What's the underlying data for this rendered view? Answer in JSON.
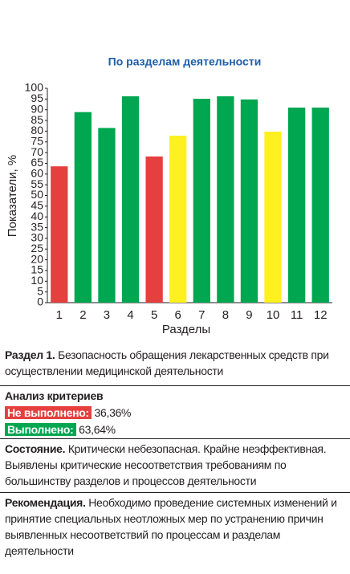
{
  "chart_data": {
    "type": "bar",
    "title": "По разделам деятельности",
    "y_label": "Показатели, %",
    "x_label": "Разделы",
    "categories": [
      "1",
      "2",
      "3",
      "4",
      "5",
      "6",
      "7",
      "8",
      "9",
      "10",
      "11",
      "12"
    ],
    "values": [
      63.6,
      88.9,
      81.5,
      96.3,
      68.2,
      77.9,
      95.1,
      96.3,
      94.8,
      79.8,
      91,
      91
    ],
    "colors": [
      "#e5403e",
      "#00a650",
      "#00a650",
      "#00a650",
      "#e5403e",
      "#fff01f",
      "#00a650",
      "#00a650",
      "#00a650",
      "#fff01f",
      "#00a650",
      "#00a650"
    ],
    "ylim": [
      0,
      100
    ],
    "yticks": [
      0,
      5,
      10,
      15,
      20,
      25,
      30,
      35,
      40,
      45,
      50,
      55,
      60,
      65,
      70,
      75,
      80,
      85,
      90,
      95,
      100
    ],
    "grid": false
  },
  "section": {
    "title": "Раздел 1.",
    "text": "Безопасность обращения лекарственных средств при осуществлении медицинской деятельности"
  },
  "criteria": {
    "title": "Анализ критериев",
    "failed_label": "Не выполнено:",
    "failed_value": "36,36%",
    "passed_label": "Выполнено:",
    "passed_value": "63,64%"
  },
  "state": {
    "title": "Состояние.",
    "text": "Критически небезопасная. Крайне неэффективная. Выявлены критические несоответствия  требованиям по большинству разделов и процессов деятельности"
  },
  "recommendation": {
    "title": "Рекомендация.",
    "text": "Необходимо проведение системных изменений и принятие специальных неотложных мер по устранению причин выявленных несоответствий по процессам и разделам деятельности"
  }
}
